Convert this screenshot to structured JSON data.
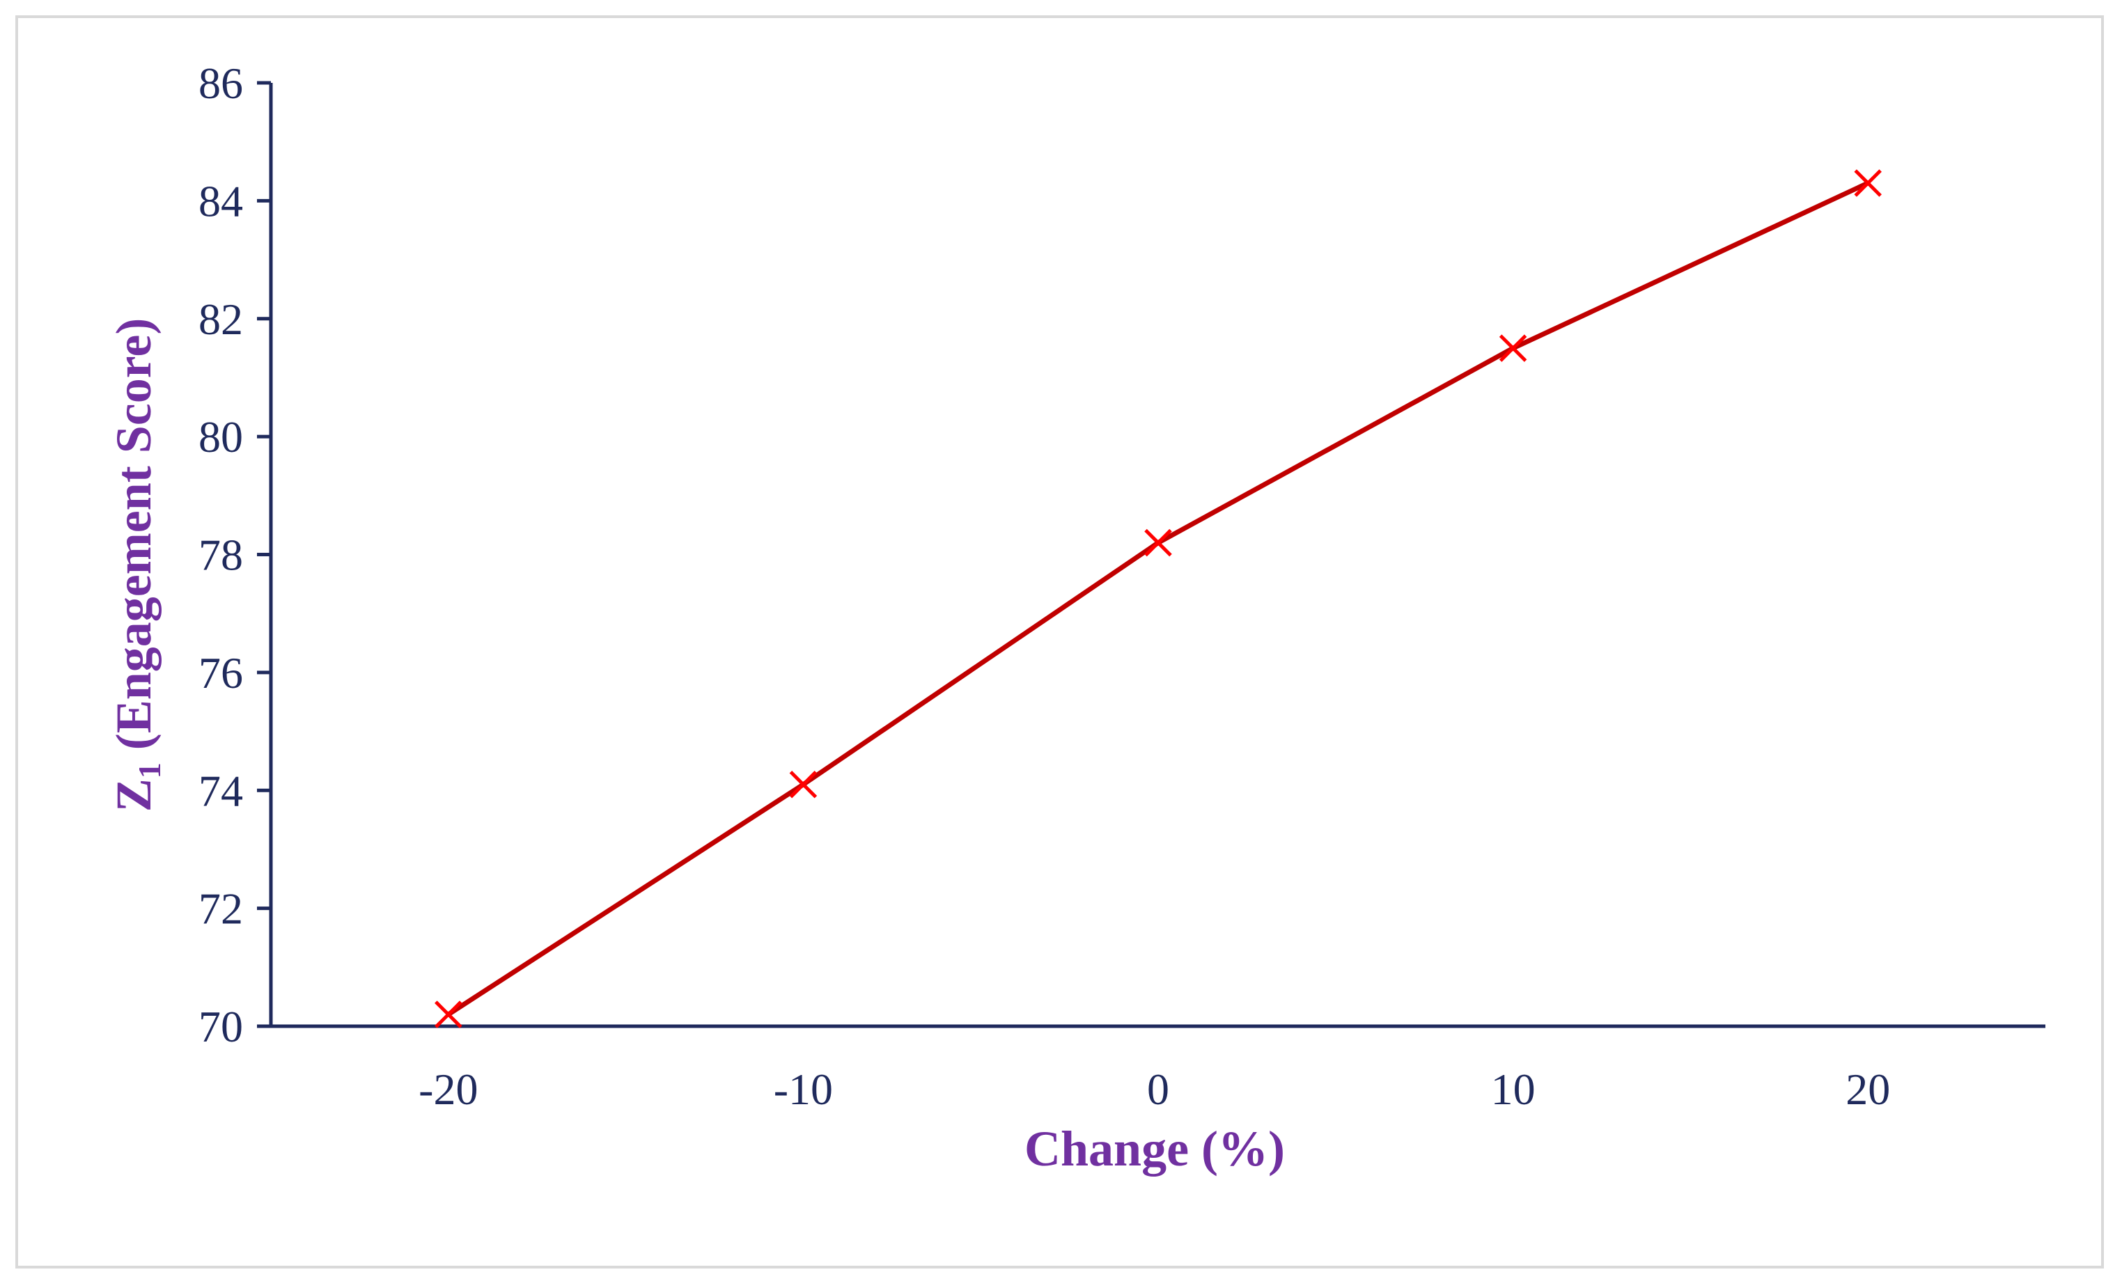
{
  "chart_data": {
    "type": "line",
    "x": [
      -20,
      -10,
      0,
      10,
      20
    ],
    "series": [
      {
        "values": [
          70.2,
          74.1,
          78.2,
          81.5,
          84.3
        ]
      }
    ],
    "xlabel": "Change (%)",
    "ylabel_main": "Z",
    "ylabel_sub": "1",
    "ylabel_rest": " (Engagement Score)",
    "xlim": [
      -25,
      25
    ],
    "ylim": [
      70,
      86
    ],
    "x_ticks": [
      "-20",
      "-10",
      "0",
      "10",
      "20"
    ],
    "y_ticks": [
      "70",
      "72",
      "74",
      "76",
      "78",
      "80",
      "82",
      "84",
      "86"
    ],
    "grid": false,
    "legend": "none",
    "marker": "x",
    "colors": {
      "line": "#c00000",
      "marker": "#ff0000",
      "axis": "#1f2a5c",
      "axis_title": "#7030a0"
    }
  }
}
